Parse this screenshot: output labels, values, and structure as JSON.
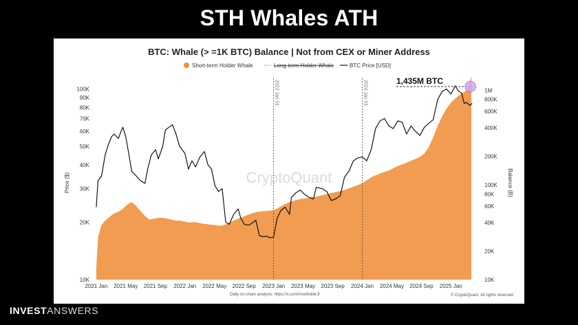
{
  "page": {
    "title": "STH Whales ATH",
    "brand_bold": "INVEST",
    "brand_light": "ANSWERS"
  },
  "chart_data": {
    "type": "area",
    "title": "BTC: Whale (> =1K BTC) Balance | Not from CEX or Miner Address",
    "legend": [
      {
        "label": "Short-term Holder Whale",
        "style": "dot",
        "color": "#f0913d"
      },
      {
        "label": "Long-term Holder Whale",
        "style": "dashed-strikethrough",
        "color": "#888888"
      },
      {
        "label": "BTC Price [USD]",
        "style": "line",
        "color": "#111111"
      }
    ],
    "ylabel_left": "Price ($)",
    "ylabel_right": "Balance (B)",
    "y_left_scale": "log",
    "y_right_scale": "log",
    "y_left_ticks": [
      "10K",
      "20K",
      "30K",
      "40K",
      "50K",
      "60K",
      "70K",
      "80K",
      "90K",
      "100K"
    ],
    "y_left_tick_values": [
      10000,
      20000,
      30000,
      40000,
      50000,
      60000,
      70000,
      80000,
      90000,
      100000
    ],
    "y_right_ticks": [
      "10K",
      "20K",
      "40K",
      "60K",
      "80K",
      "100K",
      "200K",
      "400K",
      "600K",
      "800K",
      "1M"
    ],
    "y_right_tick_values": [
      10000,
      20000,
      40000,
      60000,
      80000,
      100000,
      200000,
      400000,
      600000,
      800000,
      1000000
    ],
    "x_ticks": [
      "2021 Jan",
      "2021 May",
      "2021 Sep",
      "2022 Jan",
      "2022 May",
      "2022 Sep",
      "2023 Jan",
      "2023 May",
      "2023 Sep",
      "2024 Jan",
      "2024 May",
      "2024 Sep",
      "2025 Jan"
    ],
    "x_tick_values": [
      2021.0,
      2021.333,
      2021.667,
      2022.0,
      2022.333,
      2022.667,
      2023.0,
      2023.333,
      2023.667,
      2024.0,
      2024.333,
      2024.667,
      2025.0
    ],
    "xlim": [
      2020.97,
      2025.3
    ],
    "ylim_left": [
      10000,
      110000
    ],
    "ylim_right": [
      10000,
      1250000
    ],
    "vlines": [
      {
        "x": 2023.0,
        "label": "2023 Jan 01"
      },
      {
        "x": 2024.0,
        "label": "2024 Jan 01"
      }
    ],
    "annotation": {
      "label": "1,435M BTC",
      "x": 2025.22,
      "y_right": 1435000
    },
    "watermark": "CryptoQuant",
    "footer_left": "Daily on-chain analysis: https://x.com/AxelAdlerJr",
    "footer_right": "© CryptoQuant. All rights reserved",
    "series": [
      {
        "name": "Short-term Holder Whale",
        "axis": "right",
        "color": "#f0913d",
        "points": [
          [
            2021.0,
            13000
          ],
          [
            2021.02,
            28000
          ],
          [
            2021.06,
            38000
          ],
          [
            2021.1,
            42000
          ],
          [
            2021.15,
            46000
          ],
          [
            2021.2,
            50000
          ],
          [
            2021.25,
            52000
          ],
          [
            2021.3,
            56000
          ],
          [
            2021.35,
            62000
          ],
          [
            2021.4,
            66000
          ],
          [
            2021.45,
            60000
          ],
          [
            2021.5,
            53000
          ],
          [
            2021.55,
            47000
          ],
          [
            2021.6,
            43000
          ],
          [
            2021.65,
            44000
          ],
          [
            2021.7,
            45000
          ],
          [
            2021.75,
            45000
          ],
          [
            2021.8,
            44000
          ],
          [
            2021.85,
            43000
          ],
          [
            2021.9,
            42000
          ],
          [
            2021.95,
            42000
          ],
          [
            2022.0,
            41000
          ],
          [
            2022.05,
            40000
          ],
          [
            2022.1,
            40500
          ],
          [
            2022.15,
            40000
          ],
          [
            2022.2,
            39000
          ],
          [
            2022.25,
            38500
          ],
          [
            2022.3,
            38000
          ],
          [
            2022.35,
            37500
          ],
          [
            2022.4,
            37000
          ],
          [
            2022.45,
            38000
          ],
          [
            2022.5,
            40000
          ],
          [
            2022.55,
            42000
          ],
          [
            2022.6,
            44000
          ],
          [
            2022.65,
            46000
          ],
          [
            2022.7,
            48000
          ],
          [
            2022.75,
            50000
          ],
          [
            2022.8,
            51500
          ],
          [
            2022.85,
            52500
          ],
          [
            2022.9,
            53000
          ],
          [
            2022.95,
            53500
          ],
          [
            2023.0,
            54000
          ],
          [
            2023.05,
            57000
          ],
          [
            2023.1,
            61000
          ],
          [
            2023.15,
            64000
          ],
          [
            2023.2,
            67000
          ],
          [
            2023.25,
            69000
          ],
          [
            2023.3,
            71000
          ],
          [
            2023.35,
            72000
          ],
          [
            2023.4,
            73000
          ],
          [
            2023.45,
            74500
          ],
          [
            2023.5,
            76000
          ],
          [
            2023.55,
            78000
          ],
          [
            2023.6,
            80000
          ],
          [
            2023.65,
            82000
          ],
          [
            2023.7,
            84000
          ],
          [
            2023.75,
            86000
          ],
          [
            2023.8,
            89000
          ],
          [
            2023.85,
            92000
          ],
          [
            2023.9,
            96000
          ],
          [
            2023.95,
            100000
          ],
          [
            2024.0,
            104000
          ],
          [
            2024.05,
            112000
          ],
          [
            2024.1,
            120000
          ],
          [
            2024.15,
            126000
          ],
          [
            2024.2,
            132000
          ],
          [
            2024.25,
            137000
          ],
          [
            2024.3,
            142000
          ],
          [
            2024.35,
            150000
          ],
          [
            2024.4,
            158000
          ],
          [
            2024.45,
            165000
          ],
          [
            2024.5,
            172000
          ],
          [
            2024.55,
            180000
          ],
          [
            2024.6,
            188000
          ],
          [
            2024.65,
            198000
          ],
          [
            2024.7,
            215000
          ],
          [
            2024.75,
            250000
          ],
          [
            2024.8,
            320000
          ],
          [
            2024.85,
            420000
          ],
          [
            2024.9,
            530000
          ],
          [
            2024.95,
            640000
          ],
          [
            2025.0,
            740000
          ],
          [
            2025.05,
            820000
          ],
          [
            2025.1,
            900000
          ],
          [
            2025.15,
            960000
          ],
          [
            2025.2,
            1050000
          ],
          [
            2025.23,
            1435000
          ]
        ]
      },
      {
        "name": "BTC Price [USD]",
        "axis": "left",
        "color": "#111111",
        "points": [
          [
            2021.0,
            24000
          ],
          [
            2021.02,
            33000
          ],
          [
            2021.06,
            35000
          ],
          [
            2021.1,
            45000
          ],
          [
            2021.13,
            50000
          ],
          [
            2021.17,
            56000
          ],
          [
            2021.2,
            58000
          ],
          [
            2021.25,
            55000
          ],
          [
            2021.28,
            60000
          ],
          [
            2021.3,
            63000
          ],
          [
            2021.33,
            57000
          ],
          [
            2021.37,
            45000
          ],
          [
            2021.4,
            37000
          ],
          [
            2021.45,
            35000
          ],
          [
            2021.5,
            33000
          ],
          [
            2021.55,
            32000
          ],
          [
            2021.58,
            38000
          ],
          [
            2021.62,
            45000
          ],
          [
            2021.67,
            48000
          ],
          [
            2021.7,
            43000
          ],
          [
            2021.75,
            50000
          ],
          [
            2021.78,
            61000
          ],
          [
            2021.82,
            63000
          ],
          [
            2021.86,
            65000
          ],
          [
            2021.9,
            58000
          ],
          [
            2021.94,
            50000
          ],
          [
            2022.0,
            46000
          ],
          [
            2022.04,
            38000
          ],
          [
            2022.08,
            42000
          ],
          [
            2022.12,
            39000
          ],
          [
            2022.17,
            44000
          ],
          [
            2022.22,
            47000
          ],
          [
            2022.26,
            40000
          ],
          [
            2022.3,
            38000
          ],
          [
            2022.34,
            31000
          ],
          [
            2022.38,
            29000
          ],
          [
            2022.42,
            30000
          ],
          [
            2022.46,
            20000
          ],
          [
            2022.5,
            19500
          ],
          [
            2022.55,
            22000
          ],
          [
            2022.6,
            23500
          ],
          [
            2022.63,
            21000
          ],
          [
            2022.67,
            19500
          ],
          [
            2022.72,
            19300
          ],
          [
            2022.77,
            20000
          ],
          [
            2022.8,
            20500
          ],
          [
            2022.84,
            17000
          ],
          [
            2022.88,
            16800
          ],
          [
            2022.92,
            16900
          ],
          [
            2022.96,
            16600
          ],
          [
            2023.0,
            16700
          ],
          [
            2023.04,
            21000
          ],
          [
            2023.08,
            23000
          ],
          [
            2023.13,
            24000
          ],
          [
            2023.18,
            22000
          ],
          [
            2023.2,
            27000
          ],
          [
            2023.25,
            28500
          ],
          [
            2023.3,
            29500
          ],
          [
            2023.35,
            28000
          ],
          [
            2023.4,
            27000
          ],
          [
            2023.45,
            26500
          ],
          [
            2023.48,
            30500
          ],
          [
            2023.55,
            30000
          ],
          [
            2023.6,
            29000
          ],
          [
            2023.65,
            26000
          ],
          [
            2023.7,
            26500
          ],
          [
            2023.75,
            27500
          ],
          [
            2023.8,
            34500
          ],
          [
            2023.85,
            37000
          ],
          [
            2023.9,
            42000
          ],
          [
            2023.95,
            43500
          ],
          [
            2024.0,
            44000
          ],
          [
            2024.05,
            42000
          ],
          [
            2024.1,
            48000
          ],
          [
            2024.15,
            62000
          ],
          [
            2024.2,
            68000
          ],
          [
            2024.25,
            70000
          ],
          [
            2024.3,
            64000
          ],
          [
            2024.35,
            62000
          ],
          [
            2024.4,
            68000
          ],
          [
            2024.45,
            67000
          ],
          [
            2024.5,
            58000
          ],
          [
            2024.55,
            64000
          ],
          [
            2024.6,
            60000
          ],
          [
            2024.65,
            57000
          ],
          [
            2024.7,
            63000
          ],
          [
            2024.75,
            66000
          ],
          [
            2024.8,
            69000
          ],
          [
            2024.85,
            88000
          ],
          [
            2024.9,
            97000
          ],
          [
            2024.95,
            100000
          ],
          [
            2025.0,
            94000
          ],
          [
            2025.05,
            104000
          ],
          [
            2025.08,
            98000
          ],
          [
            2025.12,
            95000
          ],
          [
            2025.15,
            84000
          ],
          [
            2025.18,
            85000
          ],
          [
            2025.21,
            82000
          ],
          [
            2025.24,
            84000
          ]
        ]
      }
    ]
  }
}
